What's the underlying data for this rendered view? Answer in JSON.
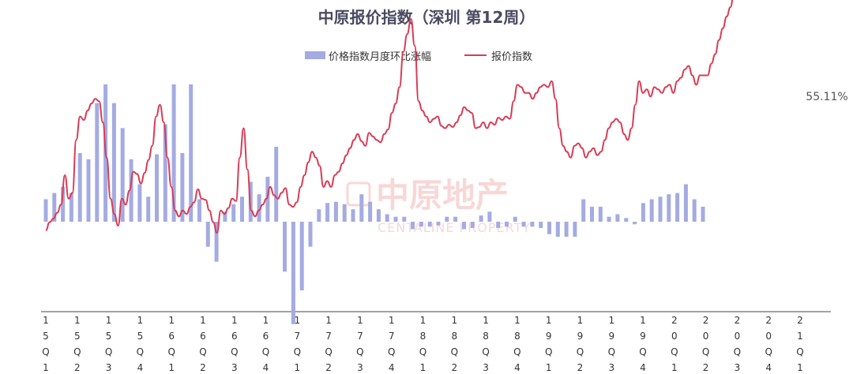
{
  "chart_data": {
    "type": "bar+line",
    "title": "中原报价指数（深圳 第12周）",
    "legend": [
      {
        "key": "bar",
        "label": "价格指数月度环比涨幅",
        "color": "#a4abe2"
      },
      {
        "key": "line",
        "label": "报价指数",
        "color": "#d93b55"
      }
    ],
    "legend_position": "top-center",
    "grid": false,
    "x_tick_labels": [
      "15Q1",
      "15Q2",
      "15Q3",
      "15Q4",
      "16Q1",
      "16Q2",
      "16Q3",
      "16Q4",
      "17Q1",
      "17Q2",
      "17Q3",
      "17Q4",
      "18Q1",
      "18Q2",
      "18Q3",
      "18Q4",
      "19Q1",
      "19Q2",
      "19Q3",
      "19Q4",
      "20Q1",
      "20Q2",
      "20Q3",
      "20Q4",
      "21Q1"
    ],
    "annotation": "55.11%",
    "bar_series": {
      "name": "价格指数月度环比涨幅",
      "values": [
        1.8,
        2.3,
        2.8,
        2.3,
        5.5,
        5.0,
        9.5,
        11.0,
        9.5,
        7.5,
        5.0,
        3.0,
        2.0,
        5.4,
        7.8,
        11.0,
        5.5,
        11.0,
        1.8,
        -2.0,
        -3.2,
        0.8,
        1.4,
        2.0,
        3.2,
        2.2,
        3.6,
        6.0,
        -4.0,
        -8.2,
        -5.5,
        -2.0,
        1.0,
        1.5,
        1.6,
        1.4,
        1.0,
        2.2,
        1.6,
        1.0,
        0.6,
        0.4,
        0.4,
        -0.6,
        -0.4,
        -0.4,
        -0.3,
        0.4,
        0.4,
        -0.6,
        -0.5,
        0.5,
        0.8,
        -0.5,
        -0.4,
        0.4,
        -0.4,
        -0.4,
        -0.5,
        -1.0,
        -1.2,
        -1.2,
        -1.2,
        1.8,
        1.2,
        1.2,
        0.4,
        0.6,
        0.3,
        -0.2,
        1.5,
        1.8,
        2.0,
        2.2,
        2.3,
        3.0,
        1.8,
        1.2
      ]
    },
    "line_series": {
      "name": "报价指数",
      "values": [
        46.8,
        47.5,
        47.8,
        48.3,
        49.0,
        51.5,
        49.5,
        50.0,
        54.5,
        56.5,
        56.2,
        57.0,
        57.6,
        58.0,
        57.8,
        56.0,
        53.0,
        49.5,
        48.2,
        47.2,
        49.5,
        49.0,
        50.2,
        51.8,
        51.6,
        50.8,
        51.7,
        52.8,
        54.0,
        56.5,
        57.5,
        56.0,
        53.0,
        50.5,
        48.5,
        48.0,
        48.5,
        48.2,
        48.8,
        49.2,
        50.3,
        49.5,
        49.4,
        48.5,
        47.5,
        46.6,
        48.5,
        48.2,
        48.7,
        49.5,
        49.3,
        53.0,
        55.5,
        52.0,
        48.5,
        48.0,
        48.5,
        49.0,
        49.5,
        50.5,
        49.8,
        49.5,
        50.0,
        50.4,
        49.0,
        48.8,
        49.2,
        50.5,
        51.5,
        52.6,
        53.5,
        53.0,
        52.3,
        50.5,
        51.0,
        50.5,
        51.5,
        51.8,
        52.5,
        53.2,
        53.8,
        54.5,
        55.0,
        54.4,
        54.0,
        55.1,
        54.8,
        54.5,
        54.3,
        55.0,
        55.4,
        56.8,
        57.6,
        59.0,
        62.0,
        63.5,
        64.8,
        62.5,
        57.8,
        57.0,
        56.5,
        56.0,
        56.3,
        56.5,
        55.7,
        55.5,
        55.8,
        55.6,
        56.0,
        56.6,
        57.3,
        57.0,
        56.8,
        55.5,
        55.6,
        56.0,
        55.5,
        56.0,
        55.8,
        56.4,
        56.2,
        56.5,
        56.3,
        57.8,
        59.2,
        59.0,
        58.5,
        58.5,
        58.0,
        58.5,
        59.0,
        59.2,
        59.0,
        59.5,
        58.0,
        55.5,
        54.0,
        53.5,
        53.0,
        54.0,
        54.2,
        53.8,
        53.0,
        53.5,
        53.8,
        53.2,
        53.5,
        54.5,
        55.5,
        56.0,
        56.3,
        56.0,
        55.0,
        54.5,
        55.5,
        57.5,
        59.5,
        58.5,
        58.8,
        58.2,
        59.0,
        58.8,
        58.5,
        59.0,
        59.2,
        58.5,
        59.5,
        59.8,
        60.5,
        60.8,
        60.0,
        59.2,
        60.0,
        60.0,
        60.0,
        61.0,
        61.8,
        63.0,
        64.0,
        65.0,
        65.8,
        67.2,
        66.5,
        68.0,
        67.5,
        68.0,
        68.3,
        68.5,
        68.3,
        68.0,
        67.8,
        67.0,
        67.0,
        67.2,
        66.5,
        66.6,
        66.8,
        66.5,
        66.8,
        67.2,
        67.8,
        69.0,
        67.5,
        68.5,
        68.0,
        69.5,
        67.0
      ]
    }
  }
}
